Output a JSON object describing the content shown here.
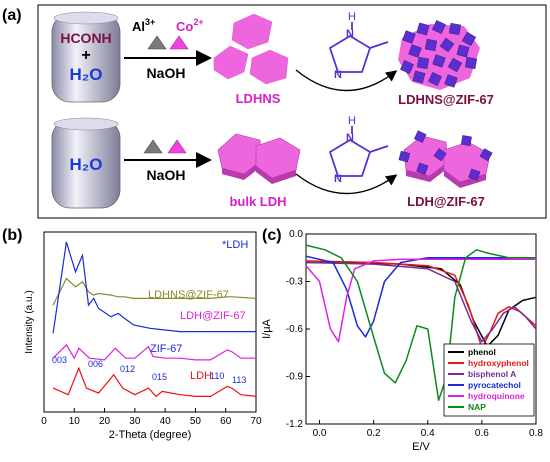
{
  "panel_a": {
    "label": "(a)",
    "row1": {
      "reactor_line1": "HCONH",
      "reactor_plus": "+",
      "reactor_line2": "H₂O",
      "ion_al": "Al",
      "ion_al_sup": "3+",
      "ion_co": "Co",
      "ion_co_sup": "2+",
      "reagent": "NaOH",
      "product1": "LDHNS",
      "product2": "LDHNS@ZIF-67"
    },
    "row2": {
      "reactor": "H₂O",
      "reagent": "NaOH",
      "product1": "bulk LDH",
      "product2": "LDH@ZIF-67"
    },
    "molecule_label": "H",
    "molecule_atom": "N",
    "colors": {
      "pink": "#ee66dd",
      "purple": "#5a2fd0",
      "dark_red": "#7a1040",
      "blue": "#1a3bd8"
    }
  },
  "chart_data": [
    {
      "type": "line",
      "panel_label": "(b)",
      "xlabel": "2-Theta (degree)",
      "ylabel": "Intensity (a.u.)",
      "xlim": [
        0,
        70
      ],
      "x_ticks": [
        "0",
        "10",
        "20",
        "30",
        "40",
        "50",
        "60",
        "70"
      ],
      "legend_note": "*LDH",
      "series": [
        {
          "name": "LDHNS@ZIF-67",
          "color": "#8a8a2a",
          "x": [
            3,
            7.4,
            10.4,
            12.7,
            14.7,
            16.4,
            18.0,
            22.1,
            24.5,
            26.6,
            29.6,
            32.4,
            35,
            40,
            45,
            50,
            55,
            60.5,
            62,
            70
          ],
          "y": [
            0.62,
            0.78,
            0.73,
            0.76,
            0.7,
            0.68,
            0.69,
            0.68,
            0.67,
            0.67,
            0.66,
            0.66,
            0.66,
            0.66,
            0.66,
            0.66,
            0.66,
            0.67,
            0.67,
            0.66
          ]
        },
        {
          "name": "ZIF-67",
          "color": "#1a2ad8",
          "x": [
            3,
            7.4,
            10.4,
            12.7,
            14.7,
            16.4,
            18.0,
            22.1,
            24.5,
            26.6,
            29.6,
            32.4,
            35,
            40,
            45,
            50,
            55,
            60,
            65,
            70
          ],
          "y": [
            0.45,
            1.0,
            0.82,
            0.92,
            0.62,
            0.66,
            0.6,
            0.55,
            0.57,
            0.54,
            0.5,
            0.49,
            0.48,
            0.47,
            0.46,
            0.46,
            0.46,
            0.46,
            0.46,
            0.46
          ]
        },
        {
          "name": "LDH@ZIF-67",
          "color": "#dd22dd",
          "x": [
            3,
            7.4,
            10,
            11.5,
            15,
            20,
            23.5,
            27,
            30,
            34.5,
            36,
            40,
            45,
            50,
            55,
            60.5,
            62,
            65,
            70
          ],
          "y": [
            0.3,
            0.38,
            0.3,
            0.36,
            0.3,
            0.29,
            0.36,
            0.3,
            0.3,
            0.37,
            0.31,
            0.3,
            0.3,
            0.29,
            0.29,
            0.35,
            0.34,
            0.3,
            0.3
          ]
        },
        {
          "name": "LDH",
          "color": "#ee1111",
          "x": [
            3,
            8,
            11.5,
            14,
            18,
            23,
            26,
            30,
            34.5,
            37,
            39,
            45,
            50,
            55,
            60.5,
            62,
            65,
            70
          ],
          "y": [
            0.12,
            0.08,
            0.24,
            0.12,
            0.09,
            0.2,
            0.12,
            0.08,
            0.12,
            0.07,
            0.1,
            0.08,
            0.07,
            0.07,
            0.13,
            0.12,
            0.08,
            0.07
          ]
        }
      ],
      "annotations": [
        "003",
        "006",
        "012",
        "015",
        "110",
        "113"
      ]
    },
    {
      "type": "line",
      "panel_label": "(c)",
      "xlabel": "E/V",
      "ylabel": "I/μA",
      "xlim": [
        -0.05,
        0.8
      ],
      "ylim": [
        -1.2,
        0.0
      ],
      "x_ticks": [
        "0.0",
        "0.2",
        "0.4",
        "0.6",
        "0.8"
      ],
      "y_ticks": [
        "0.0",
        "-0.3",
        "-0.6",
        "-0.9",
        "-1.2"
      ],
      "legend_position": "bottom-right",
      "series": [
        {
          "name": "phenol",
          "color": "#000000",
          "x": [
            -0.05,
            0.1,
            0.3,
            0.45,
            0.52,
            0.57,
            0.62,
            0.66,
            0.7,
            0.75,
            0.8
          ],
          "y": [
            -0.18,
            -0.18,
            -0.19,
            -0.22,
            -0.32,
            -0.55,
            -0.71,
            -0.64,
            -0.48,
            -0.42,
            -0.4
          ]
        },
        {
          "name": "hydroxyphenol",
          "color": "#e41a1a",
          "x": [
            -0.05,
            0.2,
            0.4,
            0.5,
            0.55,
            0.6,
            0.63,
            0.66,
            0.7,
            0.74,
            0.8
          ],
          "y": [
            -0.17,
            -0.18,
            -0.2,
            -0.26,
            -0.45,
            -0.72,
            -0.62,
            -0.5,
            -0.46,
            -0.49,
            -0.58
          ]
        },
        {
          "name": "bisphenol A",
          "color": "#7a2a9a",
          "x": [
            -0.05,
            0.2,
            0.4,
            0.5,
            0.56,
            0.6,
            0.64,
            0.68,
            0.72,
            0.76,
            0.8
          ],
          "y": [
            -0.18,
            -0.19,
            -0.22,
            -0.3,
            -0.55,
            -0.68,
            -0.6,
            -0.5,
            -0.46,
            -0.52,
            -0.6
          ]
        },
        {
          "name": "pyrocatechol",
          "color": "#1a2ad8",
          "x": [
            -0.05,
            0.05,
            0.1,
            0.14,
            0.17,
            0.2,
            0.24,
            0.3,
            0.4,
            0.55,
            0.8
          ],
          "y": [
            -0.14,
            -0.18,
            -0.35,
            -0.58,
            -0.65,
            -0.55,
            -0.3,
            -0.18,
            -0.15,
            -0.15,
            -0.15
          ]
        },
        {
          "name": "hydroquinone",
          "color": "#e020e0",
          "x": [
            -0.05,
            0.0,
            0.04,
            0.07,
            0.1,
            0.13,
            0.2,
            0.3,
            0.5,
            0.8
          ],
          "y": [
            -0.2,
            -0.3,
            -0.6,
            -0.68,
            -0.4,
            -0.22,
            -0.17,
            -0.16,
            -0.16,
            -0.16
          ]
        },
        {
          "name": "NAP",
          "color": "#0a8a1a",
          "x": [
            -0.05,
            0.02,
            0.08,
            0.14,
            0.2,
            0.24,
            0.28,
            0.32,
            0.36,
            0.4,
            0.44,
            0.47,
            0.5,
            0.54,
            0.58,
            0.62,
            0.7,
            0.8
          ],
          "y": [
            -0.07,
            -0.1,
            -0.15,
            -0.3,
            -0.65,
            -0.88,
            -0.94,
            -0.8,
            -0.58,
            -0.6,
            -1.05,
            -0.9,
            -0.4,
            -0.15,
            -0.1,
            -0.12,
            -0.15,
            -0.15
          ]
        }
      ]
    }
  ]
}
